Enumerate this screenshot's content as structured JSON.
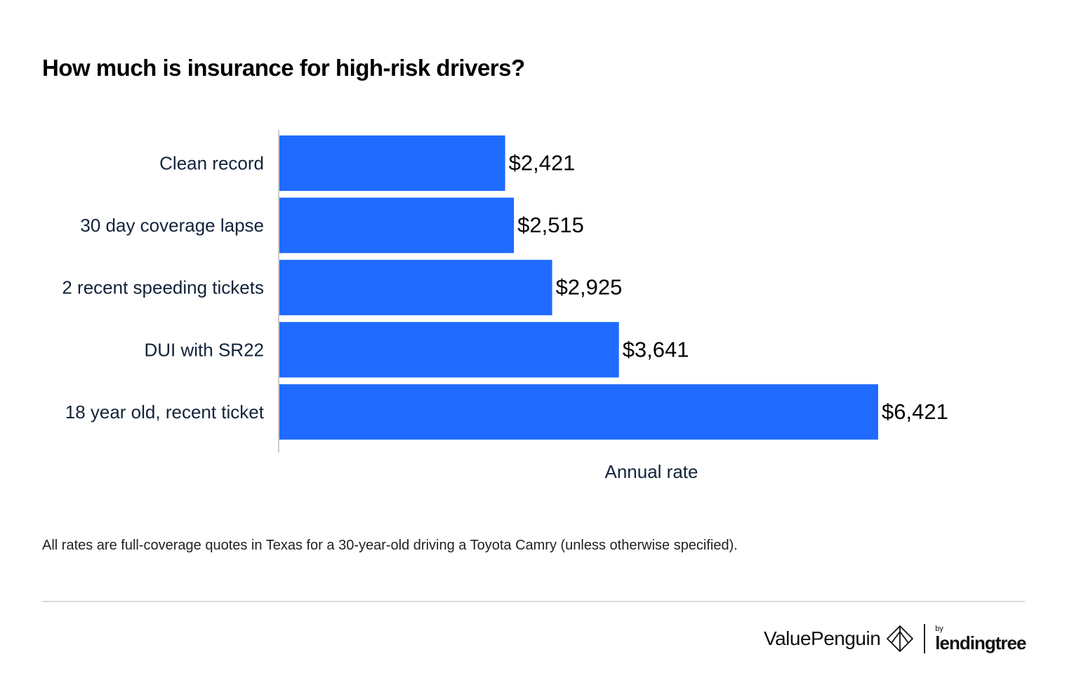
{
  "title": "How much is insurance for high-risk drivers?",
  "footnote": "All rates are full-coverage quotes in Texas for a 30-year-old driving a Toyota Camry (unless otherwise specified).",
  "branding": {
    "name": "ValuePenguin",
    "by": "by",
    "partner": "lendingtree"
  },
  "colors": {
    "bar": "#1f6bff",
    "axis": "#cccccc",
    "text": "#13233a"
  },
  "chart_data": {
    "type": "bar",
    "orientation": "horizontal",
    "categories": [
      "Clean record",
      "30 day coverage lapse",
      "2 recent speeding tickets",
      "DUI with SR22",
      "18 year old, recent ticket"
    ],
    "values": [
      2421,
      2515,
      2925,
      3641,
      6421
    ],
    "value_labels": [
      "$2,421",
      "$2,515",
      "$2,925",
      "$3,641",
      "$6,421"
    ],
    "xlabel": "Annual rate",
    "ylabel": "",
    "xlim": [
      0,
      7000
    ],
    "grid": false,
    "legend": "none"
  }
}
